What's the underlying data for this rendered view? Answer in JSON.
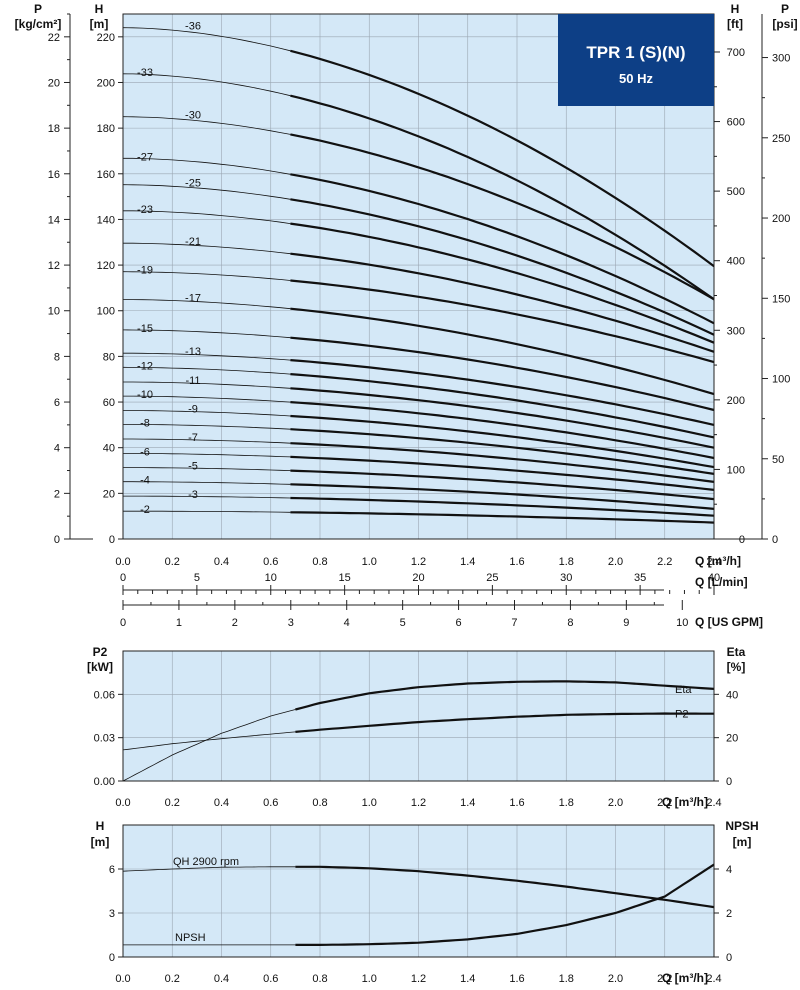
{
  "title": {
    "name": "TPR 1 (S)(N)",
    "frequency": "50 Hz",
    "box_color": "#0d3f86"
  },
  "colors": {
    "plot_bg": "#d4e8f7",
    "grid": "#9aa6b2",
    "curve": "#111111"
  },
  "chart_data": [
    {
      "type": "line",
      "id": "head",
      "left_units": {
        "p_label": "P",
        "p_unit": "[kg/cm²]",
        "h_label": "H",
        "h_unit": "[m]"
      },
      "right_units": {
        "h_label": "H",
        "h_unit": "[ft]",
        "p_label": "P",
        "p_unit": "[psi]"
      },
      "xlim": [
        0,
        2.4
      ],
      "ylim": [
        0,
        230
      ],
      "x_ticks": [
        "0.0",
        "0.2",
        "0.4",
        "0.6",
        "0.8",
        "1.0",
        "1.2",
        "1.4",
        "1.6",
        "1.8",
        "2.0",
        "2.2",
        "2.4"
      ],
      "y_ticks": [
        "0",
        "20",
        "40",
        "60",
        "80",
        "100",
        "120",
        "140",
        "160",
        "180",
        "200",
        "220"
      ],
      "p_kgcm2_ticks": [
        "0",
        "2",
        "4",
        "6",
        "8",
        "10",
        "12",
        "14",
        "16",
        "18",
        "20",
        "22"
      ],
      "h_ft_ticks": [
        "0",
        "100",
        "200",
        "300",
        "400",
        "500",
        "600",
        "700"
      ],
      "p_psi_ticks": [
        "0",
        "50",
        "100",
        "150",
        "200",
        "250",
        "300"
      ],
      "x_axes": [
        {
          "label": "Q [m³/h]",
          "ticks": [
            "0.0",
            "0.2",
            "0.4",
            "0.6",
            "0.8",
            "1.0",
            "1.2",
            "1.4",
            "1.6",
            "1.8",
            "2.0",
            "2.2",
            "2.4"
          ]
        },
        {
          "label": "Q [L/min]",
          "ticks": [
            "0",
            "5",
            "10",
            "15",
            "20",
            "25",
            "30",
            "35",
            "40"
          ]
        },
        {
          "label": "Q [US GPM]",
          "ticks": [
            "0",
            "1",
            "2",
            "3",
            "4",
            "5",
            "6",
            "7",
            "8",
            "9",
            "10"
          ]
        }
      ],
      "operating_range": [
        0.7,
        2.4
      ],
      "series": [
        {
          "name": "-2",
          "h0": 12.2,
          "h_end": 7.2
        },
        {
          "name": "-3",
          "h0": 18.8,
          "h_end": 10.2
        },
        {
          "name": "-4",
          "h0": 25.1,
          "h_end": 13.2
        },
        {
          "name": "-5",
          "h0": 31.3,
          "h_end": 17.5
        },
        {
          "name": "-6",
          "h0": 37.5,
          "h_end": 21.5
        },
        {
          "name": "-7",
          "h0": 43.8,
          "h_end": 25.0
        },
        {
          "name": "-8",
          "h0": 50.2,
          "h_end": 28.5
        },
        {
          "name": "-9",
          "h0": 56.3,
          "h_end": 31.5
        },
        {
          "name": "-10",
          "h0": 62.6,
          "h_end": 35.5
        },
        {
          "name": "-11",
          "h0": 68.8,
          "h_end": 40.0
        },
        {
          "name": "-12",
          "h0": 75.2,
          "h_end": 44.5
        },
        {
          "name": "-13",
          "h0": 81.4,
          "h_end": 50.0
        },
        {
          "name": "-15",
          "h0": 91.6,
          "h_end": 56.5
        },
        {
          "name": "-17",
          "h0": 104.9,
          "h_end": 63.5
        },
        {
          "name": "-19",
          "h0": 117.1,
          "h_end": 77.5
        },
        {
          "name": "-21",
          "h0": 129.6,
          "h_end": 82.0
        },
        {
          "name": "-23",
          "h0": 143.8,
          "h_end": 86.0
        },
        {
          "name": "-25",
          "h0": 155.2,
          "h_end": 89.5
        },
        {
          "name": "-27",
          "h0": 166.8,
          "h_end": 94.5
        },
        {
          "name": "-30",
          "h0": 185.0,
          "h_end": 105.0
        },
        {
          "name": "-33",
          "h0": 203.8,
          "h_end": 105.0
        },
        {
          "name": "-36",
          "h0": 224.0,
          "h_end": 119.5
        }
      ]
    },
    {
      "type": "line",
      "id": "power",
      "left_label": "P2",
      "left_unit": "[kW]",
      "right_label": "Eta",
      "right_unit": "[%]",
      "xlim": [
        0,
        2.4
      ],
      "ylim_left": [
        0,
        0.09
      ],
      "ylim_right": [
        0,
        60
      ],
      "x_label": "Q [m³/h]",
      "x_ticks": [
        "0.0",
        "0.2",
        "0.4",
        "0.6",
        "0.8",
        "1.0",
        "1.2",
        "1.4",
        "1.6",
        "1.8",
        "2.0",
        "2.2",
        "2.4"
      ],
      "y_left_ticks": [
        "0.00",
        "0.03",
        "0.06"
      ],
      "y_right_ticks": [
        "0",
        "20",
        "40"
      ],
      "series": [
        {
          "name": "Eta",
          "axis": "right",
          "x": [
            0,
            0.2,
            0.4,
            0.6,
            0.8,
            1.0,
            1.2,
            1.4,
            1.6,
            1.8,
            2.0,
            2.2,
            2.4
          ],
          "y": [
            0,
            12,
            22,
            30,
            36,
            40.5,
            43.3,
            45.0,
            45.8,
            46.0,
            45.5,
            44.0,
            42.5
          ]
        },
        {
          "name": "P2",
          "axis": "left",
          "x": [
            0,
            0.2,
            0.4,
            0.6,
            0.8,
            1.0,
            1.2,
            1.4,
            1.6,
            1.8,
            2.0,
            2.2,
            2.4
          ],
          "y": [
            0.0215,
            0.0258,
            0.0293,
            0.0325,
            0.0355,
            0.0382,
            0.0408,
            0.0428,
            0.0445,
            0.0458,
            0.0464,
            0.0467,
            0.0466
          ]
        }
      ]
    },
    {
      "type": "line",
      "id": "npsh",
      "left_label": "H",
      "left_unit": "[m]",
      "right_label": "NPSH",
      "right_unit": "[m]",
      "xlim": [
        0,
        2.4
      ],
      "ylim_left": [
        0,
        9
      ],
      "ylim_right": [
        0,
        6
      ],
      "x_label": "Q [m³/h]",
      "x_ticks": [
        "0.0",
        "0.2",
        "0.4",
        "0.6",
        "0.8",
        "1.0",
        "1.2",
        "1.4",
        "1.6",
        "1.8",
        "2.0",
        "2.2",
        "2.4"
      ],
      "y_left_ticks": [
        "0",
        "3",
        "6"
      ],
      "y_right_ticks": [
        "0",
        "2",
        "4"
      ],
      "series": [
        {
          "name": "QH 2900 rpm",
          "axis": "left",
          "x": [
            0,
            0.2,
            0.4,
            0.6,
            0.8,
            1.0,
            1.2,
            1.4,
            1.6,
            1.8,
            2.0,
            2.2,
            2.4
          ],
          "y": [
            5.85,
            6.0,
            6.12,
            6.15,
            6.15,
            6.05,
            5.85,
            5.55,
            5.2,
            4.8,
            4.35,
            3.9,
            3.4
          ]
        },
        {
          "name": "NPSH",
          "axis": "right",
          "x": [
            0,
            0.2,
            0.4,
            0.6,
            0.8,
            1.0,
            1.2,
            1.4,
            1.6,
            1.8,
            2.0,
            2.2,
            2.4
          ],
          "y": [
            0.55,
            0.55,
            0.55,
            0.55,
            0.55,
            0.58,
            0.65,
            0.8,
            1.05,
            1.45,
            2.0,
            2.75,
            4.2
          ]
        }
      ]
    }
  ]
}
